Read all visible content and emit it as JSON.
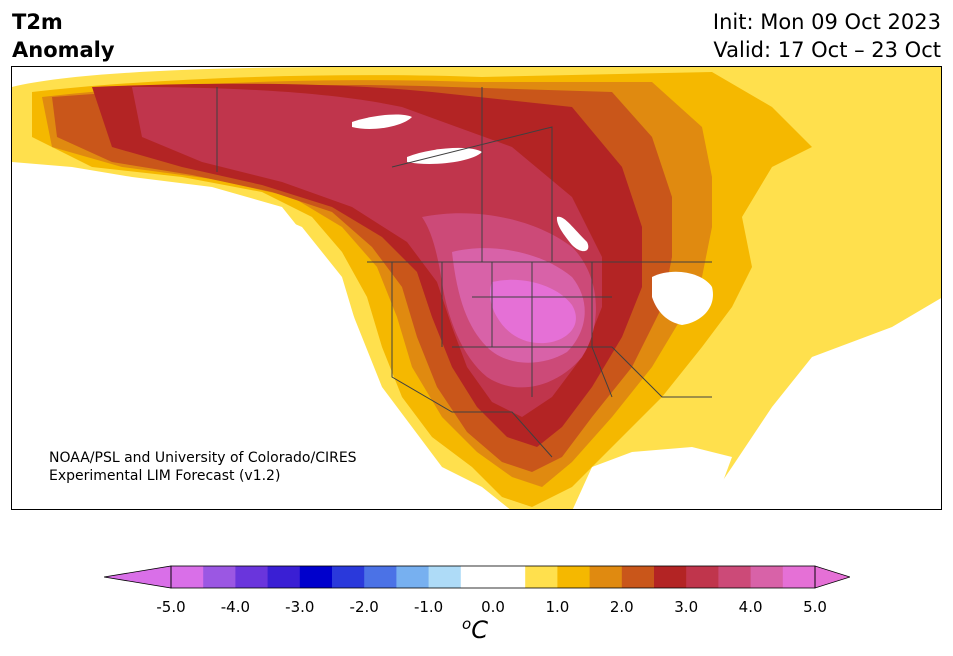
{
  "header": {
    "variable": "T2m",
    "subtitle": "Anomaly",
    "init": "Init: Mon 09 Oct 2023",
    "valid": "Valid: 17 Oct – 23 Oct"
  },
  "credit": {
    "line1": "NOAA/PSL and University of Colorado/CIRES",
    "line2": "Experimental LIM Forecast (v1.2)"
  },
  "colorbar": {
    "unit_super": "o",
    "unit_base": "C",
    "ticks": [
      "-5.0",
      "-4.0",
      "-3.0",
      "-2.0",
      "-1.0",
      "0.0",
      "1.0",
      "2.0",
      "3.0",
      "4.0",
      "5.0"
    ],
    "colors": [
      "#d96fe8",
      "#9b57e3",
      "#6a35dc",
      "#3a1fd4",
      "#0000cc",
      "#2a39db",
      "#4b72e6",
      "#77b0f0",
      "#aedbf7",
      "#ffffff",
      "#ffffff",
      "#ffe04d",
      "#f5b800",
      "#e08a10",
      "#c9561a",
      "#b32424",
      "#c0354c",
      "#cc4a78",
      "#d862a8",
      "#e570d6"
    ],
    "extend_low_color": "#d96fe8",
    "extend_high_color": "#e570d6"
  },
  "map": {
    "region": "North America",
    "ocean_color": "#ffffff",
    "border_color": "#404040"
  }
}
